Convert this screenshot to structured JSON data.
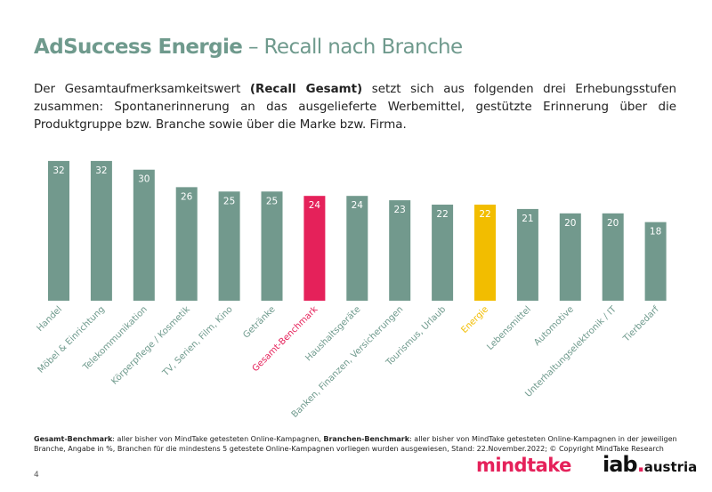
{
  "title": {
    "bold": "AdSuccess Energie",
    "rest": " – Recall nach Branche"
  },
  "intro": {
    "before": "Der Gesamtaufmerksamkeitswert ",
    "bold": "(Recall Gesamt)",
    "after": " setzt sich aus folgenden drei Erhebungsstufen zusammen: Spontanerinnerung an das ausgelieferte Werbemittel, gestützte Erinnerung über die Produktgruppe bzw. Branche sowie über die Marke bzw. Firma."
  },
  "chart_data": {
    "type": "bar",
    "categories": [
      "Handel",
      "Möbel & Einrichtung",
      "Telekommunikation",
      "Körperpflege / Kosmetik",
      "TV, Serien, Film, Kino",
      "Getränke",
      "Gesamt-Benchmark",
      "Haushaltsgeräte",
      "Banken, Finanzen, Versicherungen",
      "Tourismus, Urlaub",
      "Energie",
      "Lebensmittel",
      "Automotive",
      "Unterhaltungselektronik / IT",
      "Tierbedarf"
    ],
    "values": [
      32,
      32,
      30,
      26,
      25,
      25,
      24,
      24,
      23,
      22,
      22,
      21,
      20,
      20,
      18
    ],
    "highlight": {
      "Gesamt-Benchmark": "#e5215a",
      "Energie": "#f2bd00"
    },
    "bar_color": "#72998d",
    "ylim": [
      0,
      33
    ],
    "grid": false
  },
  "footnote": {
    "term1": "Gesamt-Benchmark",
    "text1": ": aller bisher von MindTake getesteten Online-Kampagnen, ",
    "term2": "Branchen-Benchmark",
    "text2": ": aller bisher von MindTake getesteten Online-Kampagnen in der jeweiligen Branche, Angabe in %, Branchen für die mindestens 5 getestete Online-Kampagnen vorliegen wurden ausgewiesen, Stand: 22.November.2022; © Copyright MindTake Research"
  },
  "logos": {
    "mindtake": "mindtake",
    "iab": "iab",
    "iab_dot": ".",
    "iab_sub": "austria"
  },
  "page_number": "4"
}
